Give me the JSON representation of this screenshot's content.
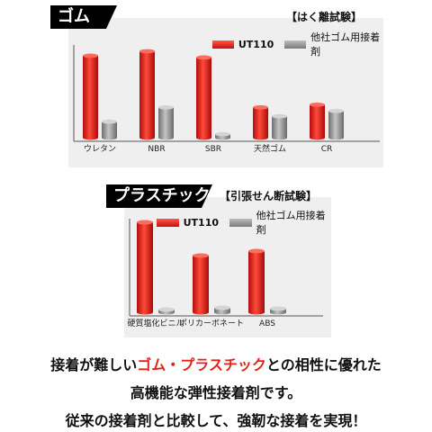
{
  "chart_data": [
    {
      "type": "bar",
      "tag": "ゴム",
      "test_name": "【はく離試験】",
      "categories": [
        "ウレタン",
        "NBR",
        "SBR",
        "天然ゴム",
        "CR"
      ],
      "series": [
        {
          "name": "UT110",
          "values": [
            92,
            97,
            90,
            34,
            37
          ],
          "color": "#d81e1e"
        },
        {
          "name": "他社ゴム用接着剤",
          "values": [
            18,
            34,
            4,
            24,
            30
          ],
          "color": "#8c8c8c"
        }
      ],
      "ylim": [
        0,
        100
      ]
    },
    {
      "type": "bar",
      "tag": "プラスチック",
      "test_name": "【引張せん断試験】",
      "categories": [
        "硬質塩化ビニル",
        "ポリカーボネート",
        "ABS"
      ],
      "series": [
        {
          "name": "UT110",
          "values": [
            100,
            63,
            68
          ],
          "color": "#d81e1e"
        },
        {
          "name": "他社ゴム用接着剤",
          "values": [
            3,
            5,
            4
          ],
          "color": "#8c8c8c"
        }
      ],
      "ylim": [
        0,
        100
      ]
    }
  ],
  "caption": {
    "line1_a": "接着が難しい",
    "line1_hl": "ゴム・プラスチック",
    "line1_b": "との相性に優れた",
    "line2": "高機能な弾性接着剤です。",
    "line3": "従来の接着剤と比較して、強靭な接着を実現！"
  }
}
